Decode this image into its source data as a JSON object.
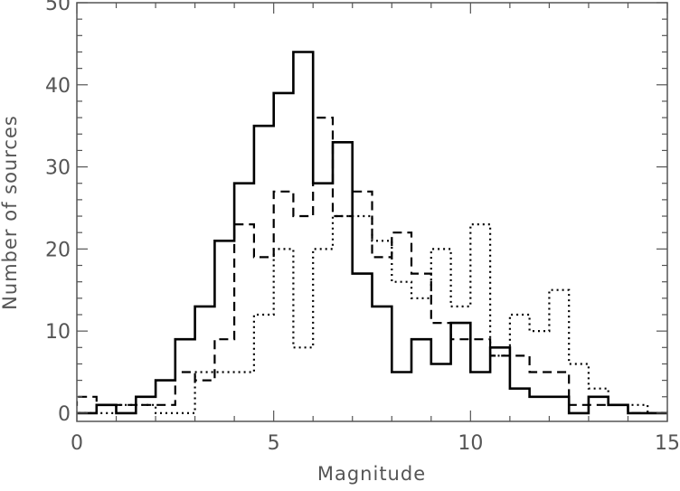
{
  "chart_data": {
    "type": "histogram",
    "title": "",
    "xlabel": "Magnitude",
    "ylabel": "Number of sources",
    "xlim": [
      0,
      15
    ],
    "ylim": [
      -1,
      50
    ],
    "xticks": [
      0,
      5,
      10,
      15
    ],
    "yticks": [
      0,
      10,
      20,
      30,
      40,
      50
    ],
    "minor_x_step": 1,
    "minor_y_step": 2,
    "grid": false,
    "legend": "none",
    "bin_width": 0.5,
    "series": [
      {
        "line_style": "solid",
        "bin_starts": [
          -0.5,
          0,
          0.5,
          1,
          1.5,
          2,
          2.5,
          3,
          3.5,
          4,
          4.5,
          5,
          5.5,
          6,
          6.5,
          7,
          7.5,
          8,
          8.5,
          9,
          9.5,
          10,
          10.5,
          11,
          11.5,
          12,
          12.5,
          13,
          13.5,
          14,
          14.5
        ],
        "values": [
          0,
          0,
          1,
          0,
          2,
          4,
          9,
          13,
          21,
          28,
          35,
          39,
          44,
          28,
          33,
          17,
          13,
          5,
          9,
          6,
          11,
          5,
          8,
          3,
          2,
          2,
          0,
          2,
          1,
          0,
          0
        ]
      },
      {
        "line_style": "dashed",
        "bin_starts": [
          -0.5,
          0,
          0.5,
          1,
          1.5,
          2,
          2.5,
          3,
          3.5,
          4,
          4.5,
          5,
          5.5,
          6,
          6.5,
          7,
          7.5,
          8,
          8.5,
          9,
          9.5,
          10,
          10.5,
          11,
          11.5,
          12,
          12.5,
          13,
          13.5,
          14,
          14.5
        ],
        "values": [
          1,
          2,
          1,
          1,
          1,
          1,
          5,
          4,
          9,
          23,
          19,
          27,
          24,
          36,
          24,
          27,
          19,
          22,
          17,
          11,
          9,
          9,
          7,
          7,
          5,
          5,
          1,
          1,
          1,
          0,
          0
        ]
      },
      {
        "line_style": "dotted",
        "bin_starts": [
          -0.5,
          0,
          0.5,
          1,
          1.5,
          2,
          2.5,
          3,
          3.5,
          4,
          4.5,
          5,
          5.5,
          6,
          6.5,
          7,
          7.5,
          8,
          8.5,
          9,
          9.5,
          10,
          10.5,
          11,
          11.5,
          12,
          12.5,
          13,
          13.5,
          14,
          14.5
        ],
        "values": [
          0,
          0,
          0,
          1,
          1,
          0,
          0,
          5,
          5,
          5,
          12,
          20,
          8,
          20,
          24,
          24,
          21,
          16,
          14,
          20,
          13,
          23,
          7,
          12,
          10,
          15,
          6,
          3,
          1,
          1,
          0
        ]
      }
    ]
  }
}
